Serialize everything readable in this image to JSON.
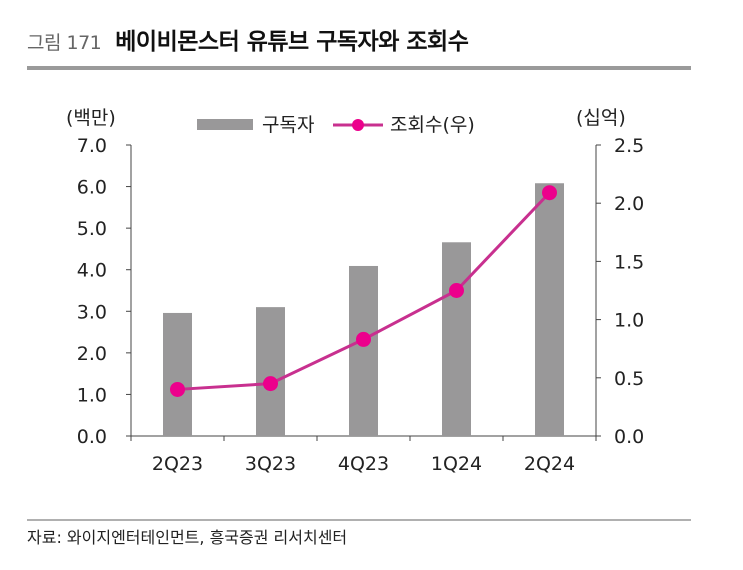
{
  "figure": {
    "number": "그림 171",
    "title": "베이비몬스터 유튜브 구독자와 조회수",
    "source": "자료: 와이지엔터테인먼트, 흥국증권 리서치센터"
  },
  "colors": {
    "bar": "#999899",
    "line": "#c8308f",
    "marker": "#ec008c",
    "axis": "#444444",
    "header_rule": "#9a9a9a"
  },
  "chart_data": {
    "type": "bar+line",
    "title": "베이비몬스터 유튜브 구독자와 조회수",
    "categories": [
      "2Q23",
      "3Q23",
      "4Q23",
      "1Q24",
      "2Q24"
    ],
    "series": [
      {
        "name": "구독자",
        "type": "bar",
        "axis": "left",
        "values": [
          2.96,
          3.1,
          4.09,
          4.66,
          6.08
        ]
      },
      {
        "name": "조회수(우)",
        "type": "line",
        "axis": "right",
        "values": [
          0.4,
          0.45,
          0.83,
          1.25,
          2.09
        ]
      }
    ],
    "left_axis": {
      "label": "(백만)",
      "range": [
        0,
        7
      ],
      "ticks": [
        "0.0",
        "1.0",
        "2.0",
        "3.0",
        "4.0",
        "5.0",
        "6.0",
        "7.0"
      ]
    },
    "right_axis": {
      "label": "(십억)",
      "range": [
        0,
        2.5
      ],
      "ticks": [
        "0.0",
        "0.5",
        "1.0",
        "1.5",
        "2.0",
        "2.5"
      ]
    },
    "legend": {
      "placement": "top-center",
      "entries": [
        "구독자",
        "조회수(우)"
      ]
    },
    "grid": false
  }
}
